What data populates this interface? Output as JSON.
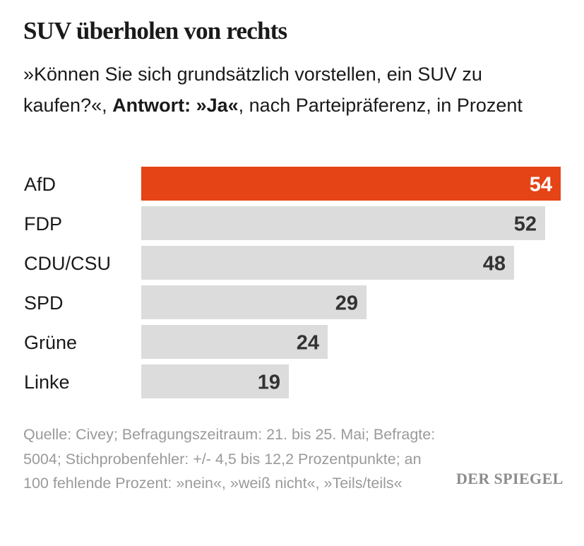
{
  "header": {
    "title": "SUV überholen von rechts",
    "subtitle_part1": "»Können Sie sich grundsätzlich vorstellen, ein SUV zu kaufen?«, ",
    "subtitle_bold": "Antwort: »Ja«",
    "subtitle_part2": ", nach Parteipräferenz, in Prozent"
  },
  "chart_data": {
    "type": "bar",
    "orientation": "horizontal",
    "categories": [
      "AfD",
      "FDP",
      "CDU/CSU",
      "SPD",
      "Grüne",
      "Linke"
    ],
    "values": [
      54,
      52,
      48,
      29,
      24,
      19
    ],
    "highlight": "AfD",
    "colors": {
      "highlight_bar": "#e44416",
      "default_bar": "#dcdcdc",
      "highlight_value": "#ffffff",
      "default_value": "#333333"
    },
    "xlim": [
      0,
      54
    ],
    "grid": false,
    "legend": "none"
  },
  "footer": {
    "source": "Quelle: Civey; Befragungszeitraum: 21. bis 25. Mai; Befragte: 5004; Stichprobenfehler: +/- 4,5 bis 12,2 Prozentpunkte; an 100 fehlende Prozent: »nein«, »weiß nicht«, »Teils/teils«",
    "logo": "DER SPIEGEL"
  }
}
